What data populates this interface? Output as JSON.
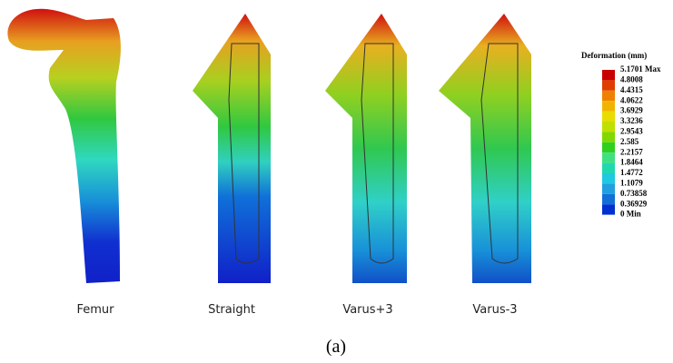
{
  "legend": {
    "title": "Deformation (mm)",
    "labels": [
      "5.1701 Max",
      "4.8008",
      "4.4315",
      "4.0622",
      "3.6929",
      "3.3236",
      "2.9543",
      "2.585",
      "2.2157",
      "1.8464",
      "1.4772",
      "1.1079",
      "0.73858",
      "0.36929",
      "0 Min"
    ]
  },
  "captions": [
    "Femur",
    "Straight",
    "Varus+3",
    "Varus-3"
  ],
  "figure_label": "(a)"
}
